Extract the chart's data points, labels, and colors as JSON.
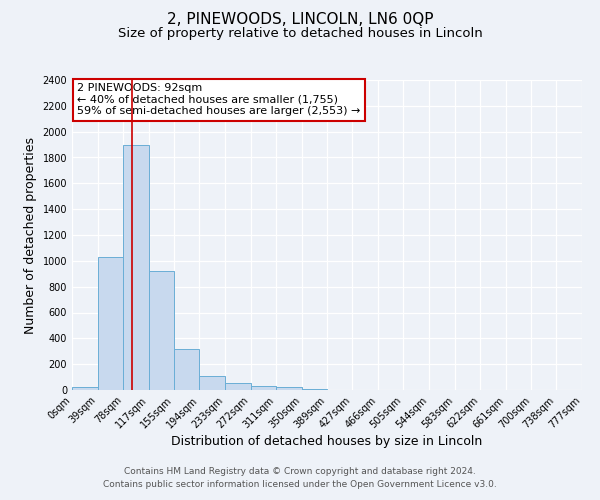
{
  "title": "2, PINEWOODS, LINCOLN, LN6 0QP",
  "subtitle": "Size of property relative to detached houses in Lincoln",
  "xlabel": "Distribution of detached houses by size in Lincoln",
  "ylabel": "Number of detached properties",
  "bar_values": [
    20,
    1030,
    1900,
    920,
    320,
    105,
    55,
    30,
    20,
    10,
    0,
    0,
    0,
    0,
    0,
    0,
    0,
    0,
    0,
    0
  ],
  "bin_labels": [
    "0sqm",
    "39sqm",
    "78sqm",
    "117sqm",
    "155sqm",
    "194sqm",
    "233sqm",
    "272sqm",
    "311sqm",
    "350sqm",
    "389sqm",
    "427sqm",
    "466sqm",
    "505sqm",
    "544sqm",
    "583sqm",
    "622sqm",
    "661sqm",
    "700sqm",
    "738sqm",
    "777sqm"
  ],
  "bin_edges": [
    0,
    39,
    78,
    117,
    155,
    194,
    233,
    272,
    311,
    350,
    389,
    427,
    466,
    505,
    544,
    583,
    622,
    661,
    700,
    738,
    777
  ],
  "bar_color": "#c8d9ee",
  "bar_edge_color": "#6aaed6",
  "vline_x": 92,
  "vline_color": "#cc0000",
  "ylim": [
    0,
    2400
  ],
  "yticks": [
    0,
    200,
    400,
    600,
    800,
    1000,
    1200,
    1400,
    1600,
    1800,
    2000,
    2200,
    2400
  ],
  "annotation_title": "2 PINEWOODS: 92sqm",
  "annotation_line1": "← 40% of detached houses are smaller (1,755)",
  "annotation_line2": "59% of semi-detached houses are larger (2,553) →",
  "annotation_box_color": "#ffffff",
  "annotation_box_edge": "#cc0000",
  "footer_line1": "Contains HM Land Registry data © Crown copyright and database right 2024.",
  "footer_line2": "Contains public sector information licensed under the Open Government Licence v3.0.",
  "background_color": "#eef2f8",
  "plot_bg_color": "#eef2f8",
  "grid_color": "#ffffff",
  "title_fontsize": 11,
  "subtitle_fontsize": 9.5,
  "axis_label_fontsize": 9,
  "tick_fontsize": 7,
  "footer_fontsize": 6.5,
  "annotation_fontsize": 8
}
